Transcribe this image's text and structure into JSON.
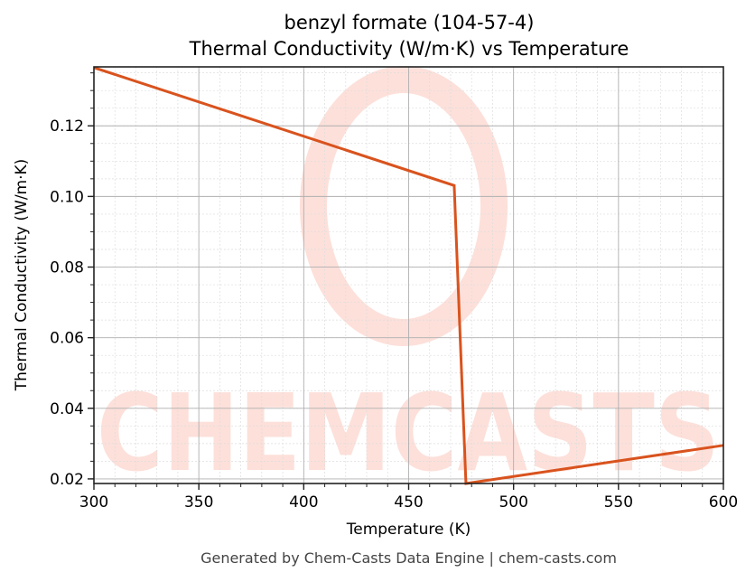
{
  "header": {
    "title_line1": "benzyl formate (104-57-4)",
    "title_line2": "Thermal Conductivity (W/m·K) vs Temperature"
  },
  "axes": {
    "xlabel": "Temperature (K)",
    "ylabel": "Thermal Conductivity (W/m·K)"
  },
  "footer": {
    "text": "Generated by Chem-Casts Data Engine | chem-casts.com"
  },
  "watermark": {
    "text": "CHEMCASTS",
    "color": "#fde0da"
  },
  "colors": {
    "line": "#d9531e",
    "major_grid": "#b0b0b0",
    "minor_grid": "#dddddd",
    "axis": "#222222"
  },
  "chart_data": {
    "type": "line",
    "title": "benzyl formate (104-57-4)\nThermal Conductivity (W/m·K) vs Temperature",
    "xlabel": "Temperature (K)",
    "ylabel": "Thermal Conductivity (W/m·K)",
    "xlim": [
      300,
      600
    ],
    "ylim": [
      0.0187,
      0.1367
    ],
    "x_ticks": [
      300,
      350,
      400,
      450,
      500,
      550,
      600
    ],
    "y_ticks": [
      0.02,
      0.04,
      0.06,
      0.08,
      0.1,
      0.12
    ],
    "x_tick_labels": [
      "300",
      "350",
      "400",
      "450",
      "500",
      "550",
      "600"
    ],
    "y_tick_labels": [
      "0.02",
      "0.04",
      "0.06",
      "0.08",
      "0.10",
      "0.12"
    ],
    "x_minor_step": 10,
    "y_minor_step": 0.005,
    "grid": true,
    "legend": null,
    "series": [
      {
        "name": "Thermal Conductivity",
        "x": [
          300,
          471.7,
          477.3,
          600
        ],
        "y": [
          0.1365,
          0.1031,
          0.0187,
          0.0295
        ]
      }
    ]
  }
}
